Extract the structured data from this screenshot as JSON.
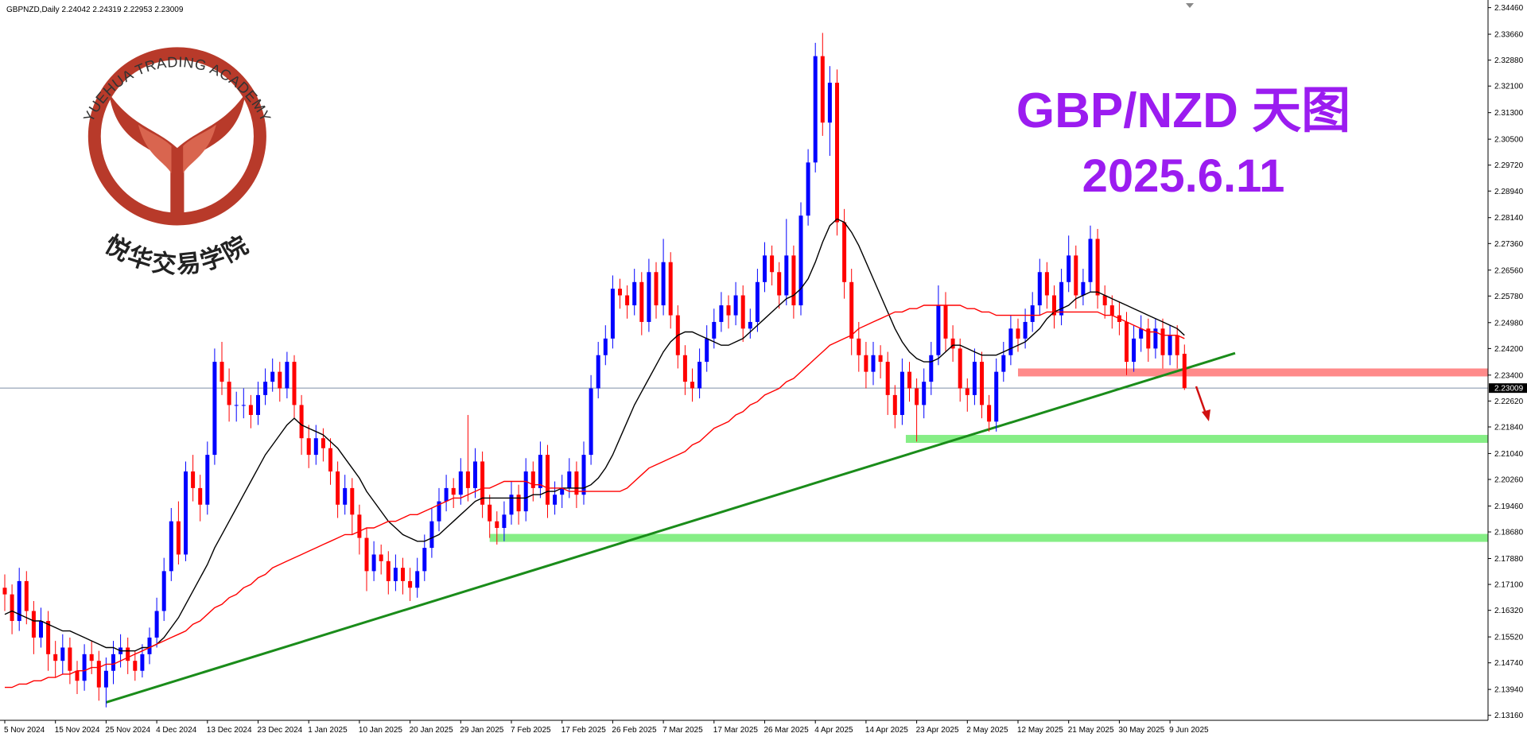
{
  "chart_data": {
    "type": "candlestick",
    "header": "GBPNZD,Daily  2.24042 2.24319 2.22953 2.23009",
    "annotations": [
      "GBP/NZD 天图",
      "2025.6.11"
    ],
    "up_color": "#0000ff",
    "down_color": "#ff0000",
    "categories": [
      "5 Nov 2024",
      null,
      null,
      null,
      null,
      null,
      null,
      "15 Nov 2024",
      null,
      null,
      null,
      null,
      null,
      null,
      "25 Nov 2024",
      null,
      null,
      null,
      null,
      null,
      null,
      "4 Dec 2024",
      null,
      null,
      null,
      null,
      null,
      null,
      "13 Dec 2024",
      null,
      null,
      null,
      null,
      null,
      null,
      "23 Dec 2024",
      null,
      null,
      null,
      null,
      null,
      null,
      "1 Jan 2025",
      null,
      null,
      null,
      null,
      null,
      null,
      "10 Jan 2025",
      null,
      null,
      null,
      null,
      null,
      null,
      "20 Jan 2025",
      null,
      null,
      null,
      null,
      null,
      null,
      "29 Jan 2025",
      null,
      null,
      null,
      null,
      null,
      null,
      "7 Feb 2025",
      null,
      null,
      null,
      null,
      null,
      null,
      "17 Feb 2025",
      null,
      null,
      null,
      null,
      null,
      null,
      "26 Feb 2025",
      null,
      null,
      null,
      null,
      null,
      null,
      "7 Mar 2025",
      null,
      null,
      null,
      null,
      null,
      null,
      "17 Mar 2025",
      null,
      null,
      null,
      null,
      null,
      null,
      "26 Mar 2025",
      null,
      null,
      null,
      null,
      null,
      null,
      "4 Apr 2025",
      null,
      null,
      null,
      null,
      null,
      null,
      "14 Apr 2025",
      null,
      null,
      null,
      null,
      null,
      null,
      "23 Apr 2025",
      null,
      null,
      null,
      null,
      null,
      null,
      "2 May 2025",
      null,
      null,
      null,
      null,
      null,
      null,
      "12 May 2025",
      null,
      null,
      null,
      null,
      null,
      null,
      "21 May 2025",
      null,
      null,
      null,
      null,
      null,
      null,
      "30 May 2025",
      null,
      null,
      null,
      null,
      null,
      null,
      "9 Jun 2025",
      null,
      null
    ],
    "open": [
      2.17,
      2.168,
      2.16,
      2.172,
      2.163,
      2.155,
      2.16,
      2.15,
      2.148,
      2.152,
      2.145,
      2.142,
      2.15,
      2.148,
      2.14,
      2.145,
      2.15,
      2.152,
      2.148,
      2.145,
      2.15,
      2.155,
      2.163,
      2.175,
      2.19,
      2.18,
      2.205,
      2.2,
      2.195,
      2.21,
      2.238,
      2.232,
      2.225,
      2.225,
      2.225,
      2.222,
      2.228,
      2.232,
      2.235,
      2.23,
      2.238,
      2.225,
      2.215,
      2.21,
      2.215,
      2.212,
      2.205,
      2.195,
      2.2,
      2.192,
      2.185,
      2.175,
      2.18,
      2.178,
      2.172,
      2.176,
      2.172,
      2.17,
      2.175,
      2.182,
      2.19,
      2.196,
      2.2,
      2.198,
      2.205,
      2.2,
      2.208,
      2.195,
      2.19,
      2.188,
      2.192,
      2.198,
      2.193,
      2.205,
      2.2,
      2.21,
      2.195,
      2.198,
      2.2,
      2.205,
      2.198,
      2.21,
      2.23,
      2.24,
      2.245,
      2.26,
      2.258,
      2.255,
      2.262,
      2.25,
      2.265,
      2.255,
      2.268,
      2.252,
      2.24,
      2.232,
      2.23,
      2.238,
      2.245,
      2.25,
      2.255,
      2.252,
      2.258,
      2.248,
      2.25,
      2.262,
      2.27,
      2.265,
      2.258,
      2.27,
      2.255,
      2.282,
      2.298,
      2.33,
      2.31,
      2.322,
      2.28,
      2.262,
      2.245,
      2.24,
      2.235,
      2.24,
      2.238,
      2.228,
      2.222,
      2.235,
      2.23,
      2.225,
      2.232,
      2.24,
      2.255,
      2.245,
      2.242,
      2.23,
      2.228,
      2.238,
      2.225,
      2.22,
      2.235,
      2.24,
      2.248,
      2.245,
      2.25,
      2.255,
      2.265,
      2.258,
      2.252,
      2.262,
      2.27,
      2.258,
      2.262,
      2.275,
      2.258,
      2.255,
      2.252,
      2.25,
      2.238,
      2.245,
      2.248,
      2.242,
      2.248,
      2.24,
      2.246,
      2.24042
    ],
    "high": [
      2.174,
      2.171,
      2.176,
      2.175,
      2.166,
      2.164,
      2.163,
      2.154,
      2.156,
      2.155,
      2.148,
      2.153,
      2.154,
      2.151,
      2.149,
      2.154,
      2.156,
      2.155,
      2.151,
      2.153,
      2.158,
      2.167,
      2.179,
      2.194,
      2.196,
      2.208,
      2.21,
      2.204,
      2.214,
      2.242,
      2.244,
      2.236,
      2.229,
      2.23,
      2.228,
      2.232,
      2.236,
      2.239,
      2.238,
      2.241,
      2.24,
      2.228,
      2.219,
      2.219,
      2.218,
      2.215,
      2.208,
      2.204,
      2.203,
      2.195,
      2.188,
      2.184,
      2.183,
      2.181,
      2.18,
      2.179,
      2.176,
      2.179,
      2.186,
      2.194,
      2.2,
      2.204,
      2.203,
      2.209,
      2.222,
      2.212,
      2.211,
      2.198,
      2.193,
      2.196,
      2.202,
      2.201,
      2.209,
      2.208,
      2.214,
      2.213,
      2.202,
      2.204,
      2.209,
      2.208,
      2.214,
      2.234,
      2.244,
      2.249,
      2.264,
      2.263,
      2.261,
      2.266,
      2.265,
      2.269,
      2.268,
      2.275,
      2.271,
      2.255,
      2.243,
      2.236,
      2.242,
      2.249,
      2.254,
      2.259,
      2.258,
      2.262,
      2.261,
      2.254,
      2.266,
      2.274,
      2.273,
      2.268,
      2.281,
      2.273,
      2.286,
      2.302,
      2.334,
      2.337,
      2.327,
      2.326,
      2.284,
      2.266,
      2.25,
      2.244,
      2.244,
      2.243,
      2.241,
      2.231,
      2.239,
      2.238,
      2.233,
      2.236,
      2.244,
      2.261,
      2.259,
      2.249,
      2.245,
      2.233,
      2.242,
      2.241,
      2.228,
      2.239,
      2.244,
      2.252,
      2.251,
      2.254,
      2.259,
      2.269,
      2.268,
      2.261,
      2.266,
      2.276,
      2.273,
      2.266,
      2.279,
      2.278,
      2.261,
      2.258,
      2.256,
      2.253,
      2.249,
      2.252,
      2.251,
      2.251,
      2.251,
      2.249,
      2.249,
      2.24319
    ],
    "low": [
      2.163,
      2.156,
      2.157,
      2.159,
      2.15,
      2.152,
      2.145,
      2.143,
      2.144,
      2.141,
      2.138,
      2.139,
      2.144,
      2.136,
      2.134,
      2.141,
      2.146,
      2.144,
      2.142,
      2.143,
      2.147,
      2.152,
      2.16,
      2.172,
      2.177,
      2.178,
      2.196,
      2.19,
      2.192,
      2.207,
      2.228,
      2.22,
      2.22,
      2.221,
      2.218,
      2.219,
      2.225,
      2.229,
      2.226,
      2.227,
      2.221,
      2.21,
      2.206,
      2.207,
      2.208,
      2.201,
      2.191,
      2.192,
      2.186,
      2.18,
      2.169,
      2.172,
      2.174,
      2.168,
      2.169,
      2.168,
      2.166,
      2.167,
      2.172,
      2.179,
      2.187,
      2.193,
      2.194,
      2.195,
      2.196,
      2.197,
      2.191,
      2.185,
      2.183,
      2.184,
      2.189,
      2.189,
      2.19,
      2.196,
      2.197,
      2.191,
      2.192,
      2.194,
      2.197,
      2.194,
      2.195,
      2.207,
      2.227,
      2.237,
      2.242,
      2.254,
      2.251,
      2.252,
      2.246,
      2.247,
      2.251,
      2.252,
      2.248,
      2.236,
      2.228,
      2.226,
      2.227,
      2.235,
      2.242,
      2.247,
      2.248,
      2.249,
      2.244,
      2.245,
      2.247,
      2.259,
      2.261,
      2.254,
      2.255,
      2.251,
      2.252,
      2.279,
      2.295,
      2.306,
      2.3,
      2.276,
      2.257,
      2.24,
      2.235,
      2.23,
      2.231,
      2.233,
      2.222,
      2.218,
      2.219,
      2.226,
      2.214,
      2.221,
      2.228,
      2.237,
      2.241,
      2.238,
      2.226,
      2.223,
      2.225,
      2.221,
      2.217,
      2.217,
      2.232,
      2.237,
      2.241,
      2.242,
      2.247,
      2.252,
      2.254,
      2.248,
      2.249,
      2.259,
      2.254,
      2.255,
      2.259,
      2.254,
      2.251,
      2.248,
      2.246,
      2.234,
      2.235,
      2.241,
      2.238,
      2.239,
      2.236,
      2.237,
      2.236,
      2.22953
    ],
    "close": [
      2.168,
      2.16,
      2.172,
      2.163,
      2.155,
      2.16,
      2.15,
      2.148,
      2.152,
      2.145,
      2.142,
      2.15,
      2.148,
      2.14,
      2.145,
      2.15,
      2.152,
      2.148,
      2.145,
      2.15,
      2.155,
      2.163,
      2.175,
      2.19,
      2.18,
      2.205,
      2.2,
      2.195,
      2.21,
      2.238,
      2.232,
      2.225,
      2.225,
      2.225,
      2.222,
      2.228,
      2.232,
      2.235,
      2.23,
      2.238,
      2.225,
      2.215,
      2.21,
      2.215,
      2.212,
      2.205,
      2.195,
      2.2,
      2.192,
      2.185,
      2.175,
      2.18,
      2.178,
      2.172,
      2.176,
      2.172,
      2.17,
      2.175,
      2.182,
      2.19,
      2.196,
      2.2,
      2.198,
      2.205,
      2.2,
      2.208,
      2.195,
      2.19,
      2.188,
      2.192,
      2.198,
      2.193,
      2.205,
      2.2,
      2.21,
      2.195,
      2.198,
      2.2,
      2.205,
      2.198,
      2.21,
      2.23,
      2.24,
      2.245,
      2.26,
      2.258,
      2.255,
      2.262,
      2.25,
      2.265,
      2.255,
      2.268,
      2.252,
      2.24,
      2.232,
      2.23,
      2.238,
      2.245,
      2.25,
      2.255,
      2.252,
      2.258,
      2.248,
      2.25,
      2.262,
      2.27,
      2.265,
      2.258,
      2.27,
      2.255,
      2.282,
      2.298,
      2.33,
      2.31,
      2.322,
      2.28,
      2.262,
      2.245,
      2.24,
      2.235,
      2.24,
      2.238,
      2.228,
      2.222,
      2.235,
      2.23,
      2.225,
      2.232,
      2.24,
      2.255,
      2.245,
      2.242,
      2.23,
      2.228,
      2.238,
      2.225,
      2.22,
      2.235,
      2.24,
      2.248,
      2.245,
      2.25,
      2.255,
      2.265,
      2.258,
      2.252,
      2.262,
      2.27,
      2.258,
      2.262,
      2.275,
      2.258,
      2.255,
      2.252,
      2.25,
      2.238,
      2.245,
      2.248,
      2.242,
      2.248,
      2.24,
      2.246,
      2.24,
      2.23009
    ],
    "lines": [
      {
        "color": "#000000",
        "values": [
          2.162,
          2.163,
          2.162,
          2.161,
          2.16,
          2.16,
          2.159,
          2.158,
          2.157,
          2.157,
          2.156,
          2.155,
          2.154,
          2.153,
          2.152,
          2.152,
          2.151,
          2.151,
          2.151,
          2.152,
          2.152,
          2.153,
          2.155,
          2.158,
          2.161,
          2.165,
          2.169,
          2.173,
          2.177,
          2.182,
          2.186,
          2.19,
          2.194,
          2.198,
          2.202,
          2.206,
          2.21,
          2.213,
          2.216,
          2.219,
          2.221,
          2.219,
          2.218,
          2.217,
          2.216,
          2.214,
          2.212,
          2.209,
          2.206,
          2.203,
          2.199,
          2.196,
          2.193,
          2.19,
          2.188,
          2.186,
          2.185,
          2.184,
          2.184,
          2.185,
          2.186,
          2.188,
          2.19,
          2.192,
          2.194,
          2.196,
          2.197,
          2.197,
          2.197,
          2.197,
          2.197,
          2.197,
          2.197,
          2.198,
          2.198,
          2.199,
          2.199,
          2.2,
          2.2,
          2.2,
          2.2,
          2.201,
          2.203,
          2.206,
          2.21,
          2.215,
          2.22,
          2.225,
          2.229,
          2.233,
          2.237,
          2.241,
          2.244,
          2.246,
          2.247,
          2.247,
          2.246,
          2.245,
          2.244,
          2.243,
          2.243,
          2.244,
          2.245,
          2.247,
          2.249,
          2.251,
          2.253,
          2.255,
          2.257,
          2.258,
          2.26,
          2.263,
          2.268,
          2.274,
          2.279,
          2.281,
          2.28,
          2.277,
          2.273,
          2.268,
          2.263,
          2.258,
          2.253,
          2.248,
          2.244,
          2.241,
          2.239,
          2.238,
          2.238,
          2.239,
          2.241,
          2.243,
          2.243,
          2.242,
          2.241,
          2.24,
          2.24,
          2.24,
          2.241,
          2.242,
          2.243,
          2.244,
          2.246,
          2.248,
          2.251,
          2.253,
          2.254,
          2.255,
          2.257,
          2.258,
          2.259,
          2.259,
          2.258,
          2.257,
          2.256,
          2.255,
          2.254,
          2.253,
          2.252,
          2.251,
          2.25,
          2.249,
          2.248,
          2.246
        ]
      },
      {
        "color": "#ff0000",
        "values": [
          2.14,
          2.14,
          2.141,
          2.141,
          2.142,
          2.142,
          2.143,
          2.143,
          2.144,
          2.144,
          2.145,
          2.145,
          2.146,
          2.146,
          2.147,
          2.147,
          2.148,
          2.149,
          2.15,
          2.151,
          2.152,
          2.153,
          2.154,
          2.155,
          2.156,
          2.157,
          2.159,
          2.16,
          2.162,
          2.164,
          2.165,
          2.167,
          2.168,
          2.17,
          2.171,
          2.173,
          2.174,
          2.176,
          2.177,
          2.178,
          2.179,
          2.18,
          2.181,
          2.182,
          2.183,
          2.184,
          2.185,
          2.186,
          2.186,
          2.187,
          2.188,
          2.188,
          2.189,
          2.19,
          2.19,
          2.191,
          2.192,
          2.192,
          2.193,
          2.194,
          2.195,
          2.196,
          2.197,
          2.197,
          2.198,
          2.199,
          2.2,
          2.2,
          2.201,
          2.202,
          2.202,
          2.202,
          2.202,
          2.201,
          2.201,
          2.2,
          2.2,
          2.2,
          2.199,
          2.199,
          2.199,
          2.199,
          2.199,
          2.199,
          2.199,
          2.199,
          2.2,
          2.202,
          2.204,
          2.206,
          2.207,
          2.208,
          2.209,
          2.21,
          2.211,
          2.213,
          2.214,
          2.216,
          2.218,
          2.219,
          2.22,
          2.222,
          2.223,
          2.225,
          2.226,
          2.228,
          2.229,
          2.23,
          2.232,
          2.233,
          2.235,
          2.237,
          2.239,
          2.241,
          2.243,
          2.244,
          2.245,
          2.246,
          2.248,
          2.249,
          2.25,
          2.251,
          2.252,
          2.253,
          2.253,
          2.254,
          2.254,
          2.255,
          2.255,
          2.255,
          2.255,
          2.255,
          2.255,
          2.254,
          2.254,
          2.253,
          2.253,
          2.252,
          2.252,
          2.252,
          2.252,
          2.252,
          2.252,
          2.252,
          2.253,
          2.253,
          2.253,
          2.253,
          2.253,
          2.253,
          2.253,
          2.253,
          2.252,
          2.252,
          2.251,
          2.25,
          2.249,
          2.248,
          2.247,
          2.247,
          2.246,
          2.246,
          2.246,
          2.245
        ]
      }
    ],
    "trendline": {
      "color": "#1a8c1a",
      "start": [
        14,
        2.1355
      ],
      "end": [
        170,
        2.2406
      ]
    },
    "zones": [
      {
        "value": 2.2348,
        "start": 140,
        "color": "#ff8a8a"
      },
      {
        "value": 2.2148,
        "start": 124.5,
        "color": "#86ee86"
      },
      {
        "value": 2.185,
        "start": 67,
        "color": "#86ee86"
      }
    ],
    "current_price": 2.23009,
    "ylim": [
      2.1301,
      2.3469
    ],
    "yticks": [
      {
        "value": 2.3446,
        "label": "2.34460"
      },
      {
        "value": 2.3366,
        "label": "2.33660"
      },
      {
        "value": 2.3288,
        "label": "2.32880"
      },
      {
        "value": 2.321,
        "label": "2.32100"
      },
      {
        "value": 2.313,
        "label": "2.31300"
      },
      {
        "value": 2.305,
        "label": "2.30500"
      },
      {
        "value": 2.2972,
        "label": "2.29720"
      },
      {
        "value": 2.2894,
        "label": "2.28940"
      },
      {
        "value": 2.2814,
        "label": "2.28140"
      },
      {
        "value": 2.2736,
        "label": "2.27360"
      },
      {
        "value": 2.2656,
        "label": "2.26560"
      },
      {
        "value": 2.2578,
        "label": "2.25780"
      },
      {
        "value": 2.2498,
        "label": "2.24980"
      },
      {
        "value": 2.242,
        "label": "2.24200"
      },
      {
        "value": 2.234,
        "label": "2.23400"
      },
      {
        "value": 2.2262,
        "label": "2.22620"
      },
      {
        "value": 2.2184,
        "label": "2.21840"
      },
      {
        "value": 2.2104,
        "label": "2.21040"
      },
      {
        "value": 2.2026,
        "label": "2.20260"
      },
      {
        "value": 2.1946,
        "label": "2.19460"
      },
      {
        "value": 2.1868,
        "label": "2.18680"
      },
      {
        "value": 2.1788,
        "label": "2.17880"
      },
      {
        "value": 2.171,
        "label": "2.17100"
      },
      {
        "value": 2.1632,
        "label": "2.16320"
      },
      {
        "value": 2.1552,
        "label": "2.15520"
      },
      {
        "value": 2.1474,
        "label": "2.14740"
      },
      {
        "value": 2.1394,
        "label": "2.13940"
      },
      {
        "value": 2.1316,
        "label": "2.13160"
      }
    ]
  },
  "logo": {
    "name": "YUEHUA TRADING ACADEMY",
    "chinese": "悦华交易学院"
  }
}
